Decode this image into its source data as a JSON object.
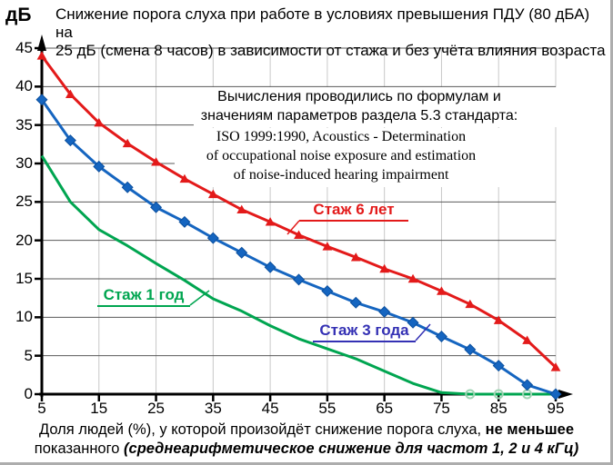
{
  "title": {
    "lines": [
      "Снижение порога слуха при работе в условиях превышения ПДУ (80 дБА) на",
      "25 дБ (смена 8 часов) в зависимости от стажа и без учёта влияния возраста"
    ]
  },
  "y_axis_unit_label": "дБ",
  "annotations": {
    "method": {
      "lines": [
        "Вычисления проводились по формулам и",
        "значениям параметров раздела 5.3 стандарта:"
      ]
    },
    "iso": {
      "lines": [
        "ISO 1999:1990, Acoustics - Determination",
        "of occupational noise exposure and estimation",
        "of noise-induced hearing impairment"
      ]
    }
  },
  "caption": {
    "line1_text": "Доля людей (%), у которой произойдёт снижение порога слуха, ",
    "line1_bold": "не меньшее",
    "line2_text": "показанного ",
    "line2_bold_italic": "(среднеарифметическое снижение для частот 1, 2 и 4 кГц)"
  },
  "colors": {
    "series_6_years": "#e31a1a",
    "series_3_years": "#1565c0",
    "series_1_year": "#00a550",
    "label_3_years_text": "#3431b4",
    "grid_horizontal": "#595959",
    "grid_vertical": "#c8c8c8",
    "axis": "#000000",
    "green_zero_marker": "#9fd4b3"
  },
  "chart_data": {
    "type": "line",
    "title": "Снижение порога слуха при работе в условиях превышения ПДУ (80 дБА) на 25 дБ (смена 8 часов) в зависимости от стажа и без учёта влияния возраста",
    "xlabel": "Доля людей (%), у которой произойдёт снижение порога слуха, не меньшее показанного (среднеарифметическое снижение для частот 1, 2 и 4 кГц)",
    "ylabel": "дБ",
    "xlim": [
      5,
      95
    ],
    "ylim": [
      0,
      45
    ],
    "x_ticks": [
      5,
      15,
      25,
      35,
      45,
      55,
      65,
      75,
      85,
      95
    ],
    "y_ticks": [
      0,
      5,
      10,
      15,
      20,
      25,
      30,
      35,
      40,
      45
    ],
    "grid": true,
    "legend_style": "inline-callout-labels",
    "x": [
      5,
      10,
      15,
      20,
      25,
      30,
      35,
      40,
      45,
      50,
      55,
      60,
      65,
      70,
      75,
      80,
      85,
      90,
      95
    ],
    "series": [
      {
        "name": "Стаж 6 лет",
        "color": "#e31a1a",
        "marker": "triangle",
        "values": [
          44,
          39,
          35.3,
          32.6,
          30.2,
          28,
          26,
          24,
          22.4,
          20.7,
          19.2,
          17.8,
          16.3,
          15,
          13.4,
          11.7,
          9.6,
          7,
          3.5
        ]
      },
      {
        "name": "Стаж 3 года",
        "color": "#1565c0",
        "marker": "diamond",
        "values": [
          38.3,
          33,
          29.6,
          26.9,
          24.3,
          22.4,
          20.3,
          18.4,
          16.5,
          14.9,
          13.4,
          11.9,
          10.7,
          9.3,
          7.5,
          5.8,
          3.7,
          1.2,
          0
        ]
      },
      {
        "name": "Стаж 1 год",
        "color": "#00a550",
        "marker": "none",
        "zero_markers_x": [
          80,
          85,
          90
        ],
        "values": [
          31,
          25,
          21.4,
          19.3,
          17,
          14.8,
          12.4,
          10.8,
          8.9,
          7.2,
          5.9,
          4.6,
          3,
          1.4,
          0.2,
          0,
          0,
          0,
          0
        ]
      }
    ]
  }
}
